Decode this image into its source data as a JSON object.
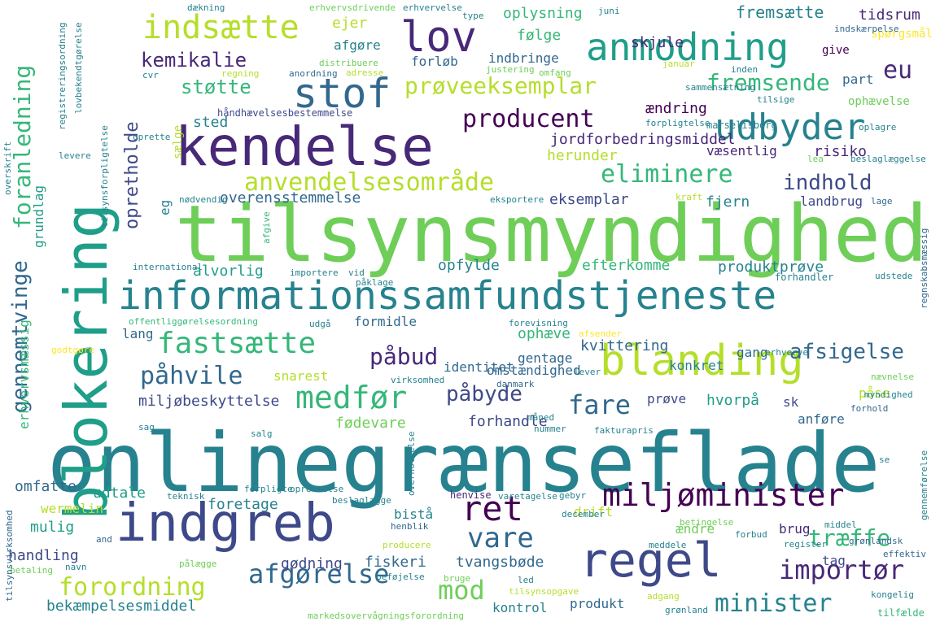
{
  "palette": {
    "c1": "#440154",
    "c2": "#482878",
    "c3": "#3e4989",
    "c4": "#31688e",
    "c5": "#26828e",
    "c6": "#1f9e89",
    "c7": "#35b779",
    "c8": "#6ece58",
    "c9": "#b5de2b",
    "c10": "#fde725"
  },
  "words": [
    {
      "t": "onlinegrænseflade",
      "c": "c5"
    },
    {
      "t": "tilsynsmyndighed",
      "c": "c8"
    },
    {
      "t": "blokering",
      "c": "c6"
    },
    {
      "t": "kendelse",
      "c": "c2"
    },
    {
      "t": "indgreb",
      "c": "c3"
    },
    {
      "t": "informationssamfundstjeneste",
      "c": "c5"
    },
    {
      "t": "blanding",
      "c": "c9"
    },
    {
      "t": "regel",
      "c": "c3"
    },
    {
      "t": "lov",
      "c": "c2"
    },
    {
      "t": "stof",
      "c": "c4"
    },
    {
      "t": "anmodning",
      "c": "c6"
    },
    {
      "t": "udbyder",
      "c": "c5"
    },
    {
      "t": "indsætte",
      "c": "c9"
    },
    {
      "t": "miljøminister",
      "c": "c1"
    },
    {
      "t": "ret",
      "c": "c1"
    },
    {
      "t": "medfør",
      "c": "c7"
    },
    {
      "t": "fastsætte",
      "c": "c7"
    },
    {
      "t": "vare",
      "c": "c4"
    },
    {
      "t": "afgørelse",
      "c": "c4"
    },
    {
      "t": "forordning",
      "c": "c9"
    },
    {
      "t": "importør",
      "c": "c2"
    },
    {
      "t": "minister",
      "c": "c5"
    },
    {
      "t": "mod",
      "c": "c8"
    },
    {
      "t": "fare",
      "c": "c4"
    },
    {
      "t": "eliminere",
      "c": "c7"
    },
    {
      "t": "fremsende",
      "c": "c7"
    },
    {
      "t": "prøveeksemplar",
      "c": "c9"
    },
    {
      "t": "producent",
      "c": "c1"
    },
    {
      "t": "anvendelsesområde",
      "c": "c9"
    },
    {
      "t": "påbud",
      "c": "c2"
    },
    {
      "t": "påhvile",
      "c": "c4"
    },
    {
      "t": "påbyde",
      "c": "c3"
    },
    {
      "t": "afsigelse",
      "c": "c4"
    },
    {
      "t": "træffe",
      "c": "c7"
    },
    {
      "t": "støtte",
      "c": "c7"
    },
    {
      "t": "kemikalie",
      "c": "c2"
    },
    {
      "t": "eu",
      "c": "c2"
    },
    {
      "t": "indhold",
      "c": "c3"
    },
    {
      "t": "foranledning",
      "c": "c7"
    },
    {
      "t": "gennemtvinge",
      "c": "c4"
    },
    {
      "t": "opretholde",
      "c": "c3"
    },
    {
      "t": "oplysning",
      "c": "c7"
    },
    {
      "t": "fremsætte",
      "c": "c5"
    },
    {
      "t": "tidsrum",
      "c": "c2"
    },
    {
      "t": "ejer",
      "c": "c9"
    },
    {
      "t": "afgøre",
      "c": "c5"
    },
    {
      "t": "følge",
      "c": "c7"
    },
    {
      "t": "skjule",
      "c": "c2"
    },
    {
      "t": "indbringe",
      "c": "c4"
    },
    {
      "t": "forløb",
      "c": "c4"
    },
    {
      "t": "give",
      "c": "c1"
    },
    {
      "t": "spørgsmål",
      "c": "c10"
    },
    {
      "t": "part",
      "c": "c4"
    },
    {
      "t": "ændring",
      "c": "c1"
    },
    {
      "t": "ophævelse",
      "c": "c8"
    },
    {
      "t": "sted",
      "c": "c5"
    },
    {
      "t": "jordforbedringsmiddel",
      "c": "c2"
    },
    {
      "t": "herunder",
      "c": "c9"
    },
    {
      "t": "væsentlig",
      "c": "c2"
    },
    {
      "t": "risiko",
      "c": "c2"
    },
    {
      "t": "overensstemmelse",
      "c": "c4"
    },
    {
      "t": "eksemplar",
      "c": "c3"
    },
    {
      "t": "fjern",
      "c": "c5"
    },
    {
      "t": "landbrug",
      "c": "c3"
    },
    {
      "t": "alvorlig",
      "c": "c6"
    },
    {
      "t": "opfylde",
      "c": "c5"
    },
    {
      "t": "efterkomme",
      "c": "c7"
    },
    {
      "t": "produktprøve",
      "c": "c5"
    },
    {
      "t": "formidle",
      "c": "c4"
    },
    {
      "t": "lang",
      "c": "c4"
    },
    {
      "t": "ophæve",
      "c": "c7"
    },
    {
      "t": "kvittering",
      "c": "c4"
    },
    {
      "t": "gentage",
      "c": "c4"
    },
    {
      "t": "omstændighed",
      "c": "c4"
    },
    {
      "t": "identitet",
      "c": "c4"
    },
    {
      "t": "konkret",
      "c": "c5"
    },
    {
      "t": "gang",
      "c": "c4"
    },
    {
      "t": "snarest",
      "c": "c9"
    },
    {
      "t": "miljøbeskyttelse",
      "c": "c3"
    },
    {
      "t": "hvorpå",
      "c": "c6"
    },
    {
      "t": "prøve",
      "c": "c3"
    },
    {
      "t": "påse",
      "c": "c9"
    },
    {
      "t": "sk",
      "c": "c3"
    },
    {
      "t": "fødevare",
      "c": "c8"
    },
    {
      "t": "forhandle",
      "c": "c3"
    },
    {
      "t": "anføre",
      "c": "c4"
    },
    {
      "t": "omfatte",
      "c": "c4"
    },
    {
      "t": "udtale",
      "c": "c6"
    },
    {
      "t": "foretage",
      "c": "c5"
    },
    {
      "t": "wermelin",
      "c": "c9"
    },
    {
      "t": "bistå",
      "c": "c5"
    },
    {
      "t": "mulig",
      "c": "c6"
    },
    {
      "t": "ændre",
      "c": "c8"
    },
    {
      "t": "drift",
      "c": "c9"
    },
    {
      "t": "brug",
      "c": "c2"
    },
    {
      "t": "handling",
      "c": "c3"
    },
    {
      "t": "fiskeri",
      "c": "c4"
    },
    {
      "t": "tvangsbøde",
      "c": "c4"
    },
    {
      "t": "tag",
      "c": "c3"
    },
    {
      "t": "gødning",
      "c": "c3"
    },
    {
      "t": "kontrol",
      "c": "c5"
    },
    {
      "t": "produkt",
      "c": "c4"
    },
    {
      "t": "bekæmpelsesmiddel",
      "c": "c5"
    },
    {
      "t": "grundlag",
      "c": "c6"
    },
    {
      "t": "erhvervsmæssig",
      "c": "c7"
    },
    {
      "t": "eg",
      "c": "c5"
    },
    {
      "t": "international",
      "c": "c5"
    },
    {
      "t": "importere",
      "c": "c5"
    },
    {
      "t": "vid",
      "c": "c5"
    },
    {
      "t": "påklage",
      "c": "c5"
    },
    {
      "t": "forhandler",
      "c": "c5"
    },
    {
      "t": "udstede",
      "c": "c5"
    },
    {
      "t": "offentliggørelsesordning",
      "c": "c7"
    },
    {
      "t": "forevisning",
      "c": "c5"
    },
    {
      "t": "afsender",
      "c": "c10"
    },
    {
      "t": "erhverve",
      "c": "c5"
    },
    {
      "t": "godtgøre",
      "c": "c10"
    },
    {
      "t": "virksomhed",
      "c": "c5"
    },
    {
      "t": "danmark",
      "c": "c4"
    },
    {
      "t": "måned",
      "c": "c5"
    },
    {
      "t": "nummer",
      "c": "c5"
    },
    {
      "t": "fakturapris",
      "c": "c5"
    },
    {
      "t": "sag",
      "c": "c5"
    },
    {
      "t": "salg",
      "c": "c5"
    },
    {
      "t": "teknisk",
      "c": "c5"
    },
    {
      "t": "henvise",
      "c": "c2"
    },
    {
      "t": "varetagelse",
      "c": "c5"
    },
    {
      "t": "gebyr",
      "c": "c5"
    },
    {
      "t": "forpligte",
      "c": "c5"
    },
    {
      "t": "oprettelse",
      "c": "c5"
    },
    {
      "t": "beslaglægge",
      "c": "c5"
    },
    {
      "t": "december",
      "c": "c5"
    },
    {
      "t": "henblik",
      "c": "c4"
    },
    {
      "t": "forbud",
      "c": "c5"
    },
    {
      "t": "betingelse",
      "c": "c8"
    },
    {
      "t": "register",
      "c": "c5"
    },
    {
      "t": "meddele",
      "c": "c5"
    },
    {
      "t": "producere",
      "c": "c9"
    },
    {
      "t": "grønlandsk",
      "c": "c4"
    },
    {
      "t": "effektiv",
      "c": "c4"
    },
    {
      "t": "betaling",
      "c": "c8"
    },
    {
      "t": "pålægge",
      "c": "c8"
    },
    {
      "t": "beføjelse",
      "c": "c5"
    },
    {
      "t": "led",
      "c": "c5"
    },
    {
      "t": "bruge",
      "c": "c8"
    },
    {
      "t": "tilsynsopgave",
      "c": "c9"
    },
    {
      "t": "markedsovervågningsforordning",
      "c": "c8"
    },
    {
      "t": "adgang",
      "c": "c9"
    },
    {
      "t": "grønland",
      "c": "c5"
    },
    {
      "t": "kongelig",
      "c": "c5"
    },
    {
      "t": "tilfælde",
      "c": "c7"
    },
    {
      "t": "and",
      "c": "c4"
    },
    {
      "t": "navn",
      "c": "c5"
    },
    {
      "t": "nævnelse",
      "c": "c8"
    },
    {
      "t": "forhold",
      "c": "c4"
    },
    {
      "t": "myndighed",
      "c": "c5"
    },
    {
      "t": "lever",
      "c": "c5"
    },
    {
      "t": "dækning",
      "c": "c5"
    },
    {
      "t": "erhvervsdrivende",
      "c": "c8"
    },
    {
      "t": "erhvervelse",
      "c": "c5"
    },
    {
      "t": "type",
      "c": "c5"
    },
    {
      "t": "juni",
      "c": "c5"
    },
    {
      "t": "indskærpelse",
      "c": "c4"
    },
    {
      "t": "distribuere",
      "c": "c8"
    },
    {
      "t": "anordning",
      "c": "c4"
    },
    {
      "t": "adresse",
      "c": "c9"
    },
    {
      "t": "justering",
      "c": "c8"
    },
    {
      "t": "omfang",
      "c": "c8"
    },
    {
      "t": "januar",
      "c": "c9"
    },
    {
      "t": "inden",
      "c": "c5"
    },
    {
      "t": "regning",
      "c": "c9"
    },
    {
      "t": "cvr",
      "c": "c5"
    },
    {
      "t": "tilsige",
      "c": "c5"
    },
    {
      "t": "sammensætning",
      "c": "c5"
    },
    {
      "t": "håndhævelsesbestemmelse",
      "c": "c3"
    },
    {
      "t": "forpligtelse",
      "c": "c5"
    },
    {
      "t": "marselisborg",
      "c": "c5"
    },
    {
      "t": "oplagre",
      "c": "c5"
    },
    {
      "t": "lea",
      "c": "c8"
    },
    {
      "t": "beslaglæggelse",
      "c": "c5"
    },
    {
      "t": "nødvendig",
      "c": "c5"
    },
    {
      "t": "eksportere",
      "c": "c5"
    },
    {
      "t": "kraft",
      "c": "c9"
    },
    {
      "t": "lage",
      "c": "c4"
    },
    {
      "t": "levere",
      "c": "c5"
    },
    {
      "t": "oprette",
      "c": "c5"
    },
    {
      "t": "sælge",
      "c": "c9"
    },
    {
      "t": "registreringsordning",
      "c": "c5"
    },
    {
      "t": "lovbekendtgørelse",
      "c": "c5"
    },
    {
      "t": "tilsynsforpligtelse",
      "c": "c5"
    },
    {
      "t": "overskrift",
      "c": "c5"
    },
    {
      "t": "tilsynsvirksomhed",
      "c": "c4"
    },
    {
      "t": "regnskabsmæssig",
      "c": "c4"
    },
    {
      "t": "gennemførelse",
      "c": "c5"
    },
    {
      "t": "overholdelse",
      "c": "c5"
    },
    {
      "t": "afgive",
      "c": "c7"
    },
    {
      "t": "middel",
      "c": "c5"
    },
    {
      "t": "udgå",
      "c": "c5"
    },
    {
      "t": "se",
      "c": "c5"
    }
  ]
}
